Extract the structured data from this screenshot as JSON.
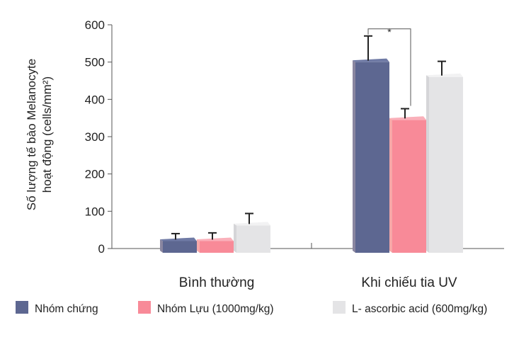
{
  "colors": {
    "axis": "#555555",
    "error_bar": "#222222",
    "series": [
      {
        "front": "#5d6791",
        "top": "#6f7aa5",
        "side": "#8a86a0"
      },
      {
        "front": "#f88a98",
        "top": "#fab0ba",
        "side": "#f6a8a8"
      },
      {
        "front": "#e4e4e6",
        "top": "#f2f2f3",
        "side": "#d5d5d8"
      }
    ]
  },
  "chart_data": {
    "type": "bar",
    "title": "",
    "xlabel": "",
    "ylabel_lines": [
      "Số lượng  tế bào Melanocyte",
      "hoạt động (cells/mm²)"
    ],
    "ylim": [
      0,
      600
    ],
    "yticks": [
      "0",
      "100",
      "200",
      "300",
      "400",
      "500",
      "600"
    ],
    "categories": [
      "Bình thường",
      "Khi chiếu tia UV"
    ],
    "series": [
      {
        "name": "Nhóm chứng",
        "values": [
          20,
          500
        ],
        "errors": [
          20,
          70
        ]
      },
      {
        "name": "Nhóm Lựu (1000mg/kg)",
        "values": [
          20,
          345
        ],
        "errors": [
          22,
          30
        ]
      },
      {
        "name": "L- ascorbic acid (600mg/kg)",
        "values": [
          62,
          460
        ],
        "errors": [
          32,
          42
        ]
      }
    ],
    "annotations": [
      {
        "text": "*",
        "between": [
          "Nhóm chứng",
          "Nhóm Lựu (1000mg/kg)"
        ],
        "category": "Khi chiếu tia UV"
      }
    ],
    "legend_position": "bottom",
    "grid": false
  }
}
